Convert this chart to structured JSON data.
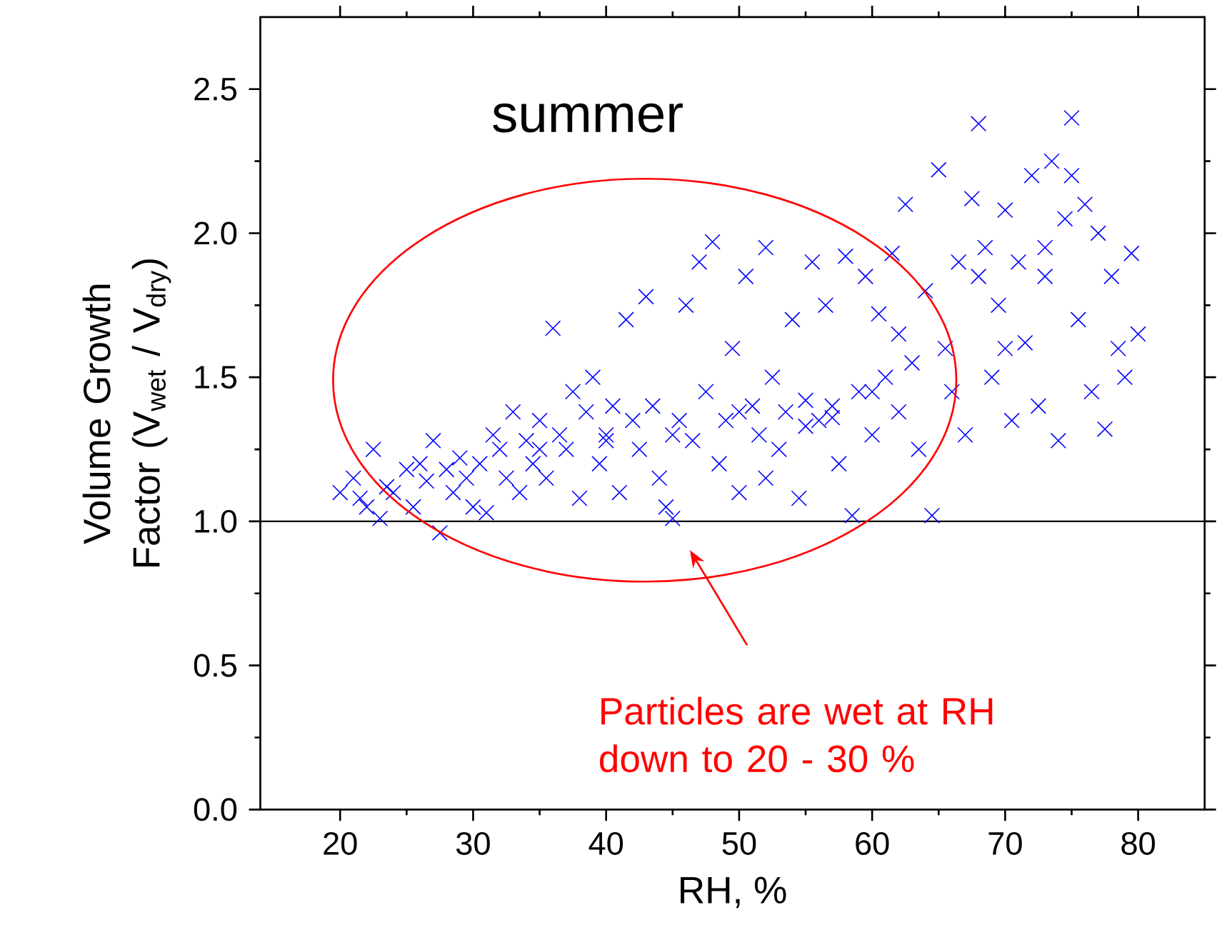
{
  "chart_data": {
    "type": "scatter",
    "xlabel": "RH, %",
    "ylabel": "Volume Growth Factor (V$_{wet}$ / V$_{dry}$)",
    "xlim": [
      14,
      85
    ],
    "xticks": [
      20,
      30,
      40,
      50,
      60,
      70,
      80
    ],
    "ylim": [
      0,
      2.75
    ],
    "yticks": [
      {
        "value": 0,
        "label": "0.0"
      },
      0.5,
      {
        "value": 1,
        "label": "1.0"
      },
      1.5,
      {
        "value": 2,
        "label": "2.0"
      },
      2.5
    ],
    "grid": false,
    "marker": "cross",
    "ref_lines": [
      {
        "axis": "y",
        "value": 1,
        "color": "#000000"
      }
    ],
    "annotations": [
      "summer",
      "Particles are wet at RH down to 20 - 30 %"
    ],
    "series": [
      {
        "color": "#0000ff",
        "x": [
          20,
          21,
          21.5,
          22,
          22.5,
          23,
          23.5,
          24,
          25,
          25.5,
          26,
          26.5,
          27,
          27.5,
          28,
          28.5,
          29,
          29.5,
          30,
          30.5,
          31,
          31.5,
          32,
          32.5,
          33,
          33.5,
          34,
          34.5,
          35,
          35.5,
          36,
          36.5,
          37,
          37.5,
          38,
          38.5,
          39,
          39.5,
          40,
          40.5,
          41,
          41.5,
          42,
          42.5,
          43,
          43.5,
          44,
          44.5,
          45,
          45.5,
          46,
          46.5,
          47,
          47.5,
          48,
          48.5,
          49,
          49.5,
          50,
          50.5,
          51,
          51.5,
          52,
          52.5,
          53,
          53.5,
          54,
          54.5,
          55,
          55.5,
          56,
          56.5,
          57,
          57.5,
          58,
          58.5,
          59,
          59.5,
          60,
          60.5,
          61,
          61.5,
          62,
          62.5,
          63,
          63.5,
          64,
          64.5,
          65,
          65.5,
          66,
          66.5,
          67,
          67.5,
          68,
          68.5,
          69,
          69.5,
          70,
          70.5,
          71,
          71.5,
          72,
          72.5,
          73,
          73.5,
          74,
          74.5,
          75,
          75.5,
          76,
          76.5,
          77,
          77.5,
          78,
          78.5,
          79,
          79.5,
          80,
          45,
          50,
          55,
          57,
          60,
          35,
          40,
          52,
          62,
          70,
          73,
          75,
          68
        ],
        "values": [
          1.1,
          1.15,
          1.08,
          1.05,
          1.25,
          1.01,
          1.12,
          1.1,
          1.18,
          1.05,
          1.2,
          1.14,
          1.28,
          0.96,
          1.18,
          1.1,
          1.22,
          1.15,
          1.05,
          1.2,
          1.03,
          1.3,
          1.25,
          1.15,
          1.38,
          1.1,
          1.28,
          1.2,
          1.35,
          1.15,
          1.67,
          1.3,
          1.25,
          1.45,
          1.08,
          1.38,
          1.5,
          1.2,
          1.3,
          1.4,
          1.1,
          1.7,
          1.35,
          1.25,
          1.78,
          1.4,
          1.15,
          1.05,
          1.01,
          1.35,
          1.75,
          1.28,
          1.9,
          1.45,
          1.97,
          1.2,
          1.35,
          1.6,
          1.1,
          1.85,
          1.4,
          1.3,
          1.95,
          1.5,
          1.25,
          1.38,
          1.7,
          1.08,
          1.42,
          1.9,
          1.35,
          1.75,
          1.4,
          1.2,
          1.92,
          1.02,
          1.45,
          1.85,
          1.3,
          1.72,
          1.5,
          1.93,
          1.38,
          2.1,
          1.55,
          1.25,
          1.8,
          1.02,
          2.22,
          1.6,
          1.45,
          1.9,
          1.3,
          2.12,
          2.38,
          1.95,
          1.5,
          1.75,
          2.08,
          1.35,
          1.9,
          1.62,
          2.2,
          1.4,
          1.85,
          2.25,
          1.28,
          2.05,
          2.4,
          1.7,
          2.1,
          1.45,
          2.0,
          1.32,
          1.85,
          1.6,
          1.5,
          1.93,
          1.65,
          1.3,
          1.38,
          1.33,
          1.36,
          1.45,
          1.25,
          1.28,
          1.15,
          1.65,
          1.6,
          1.95,
          2.2,
          1.85
        ]
      }
    ]
  }
}
